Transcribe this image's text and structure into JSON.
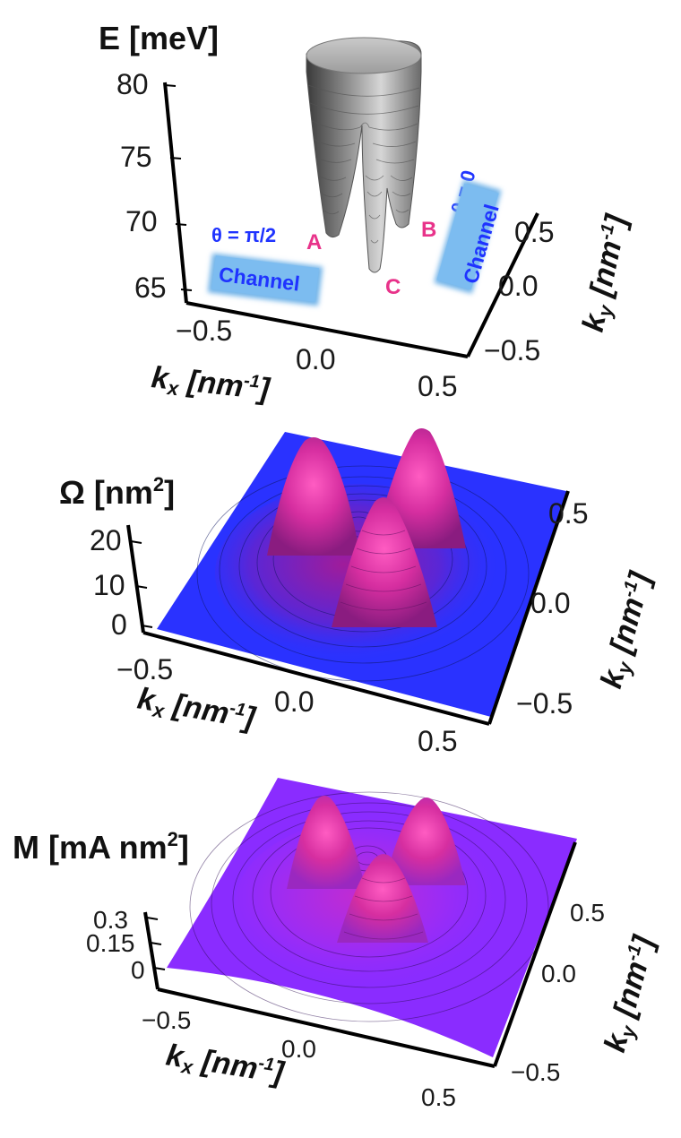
{
  "chart_data": [
    {
      "type": "surface",
      "title": "E [meV]",
      "xlabel_main": "k",
      "xlabel_sub": "x",
      "xlabel_unit": " [nm",
      "xlabel_exp": "-1",
      "xlabel_close": "]",
      "ylabel_main": "k",
      "ylabel_sub": "y",
      "ylabel_unit": " [nm",
      "ylabel_exp": "-1",
      "ylabel_close": "]",
      "z_ticks": [
        "80",
        "75",
        "70",
        "65"
      ],
      "z_values": [
        80,
        75,
        70,
        65
      ],
      "zlim": [
        65,
        80
      ],
      "x_ticks": [
        "−0.5",
        "0.0",
        "0.5"
      ],
      "y_ticks": [
        "0.5",
        "0.0",
        "−0.5"
      ],
      "xlim": [
        -0.5,
        0.5
      ],
      "ylim": [
        -0.5,
        0.5
      ],
      "valleys": [
        {
          "label": "A"
        },
        {
          "label": "B"
        },
        {
          "label": "C"
        }
      ],
      "annotations": {
        "theta_pi2": "θ = π/2",
        "theta_0": "θ = 0",
        "channel_left": "Channel",
        "channel_right": "Channel"
      },
      "colors": {
        "surface": "#9a9a9a",
        "annotation_letters": "#e8338a",
        "annotation_theta": "#1f33ff",
        "channel_box": "#6fb2e8"
      }
    },
    {
      "type": "surface",
      "title_main": "Ω [nm",
      "title_exp": "2",
      "title_close": "]",
      "z_ticks": [
        "20",
        "10",
        "0"
      ],
      "z_values": [
        20,
        10,
        0
      ],
      "zlim": [
        0,
        25
      ],
      "x_ticks": [
        "−0.5",
        "0.0",
        "0.5"
      ],
      "y_ticks": [
        "0.5",
        "0.0",
        "−0.5"
      ],
      "xlim": [
        -0.5,
        0.5
      ],
      "ylim": [
        -0.5,
        0.5
      ],
      "xlabel_main": "k",
      "xlabel_sub": "x",
      "xlabel_unit": " [nm",
      "xlabel_exp": "-1",
      "xlabel_close": "]",
      "ylabel_main": "k",
      "ylabel_sub": "y",
      "ylabel_unit": " [nm",
      "ylabel_exp": "-1",
      "ylabel_close": "]",
      "colors": {
        "base": "#2a32ff",
        "peak": "#f03c9b"
      }
    },
    {
      "type": "surface",
      "title_main": "M [mA nm",
      "title_exp": "2",
      "title_close": "]",
      "z_ticks": [
        "0.3",
        "0.15",
        "0"
      ],
      "z_values": [
        0.3,
        0.15,
        0
      ],
      "zlim": [
        0,
        0.3
      ],
      "x_ticks": [
        "−0.5",
        "0.0",
        "0.5"
      ],
      "y_ticks": [
        "0.5",
        "0.0",
        "−0.5"
      ],
      "xlim": [
        -0.5,
        0.5
      ],
      "ylim": [
        -0.5,
        0.5
      ],
      "xlabel_main": "k",
      "xlabel_sub": "x",
      "xlabel_unit": " [nm",
      "xlabel_exp": "-1",
      "xlabel_close": "]",
      "ylabel_main": "k",
      "ylabel_sub": "y",
      "ylabel_unit": " [nm",
      "ylabel_exp": "-1",
      "ylabel_close": "]",
      "colors": {
        "base": "#8a2cff",
        "peak": "#f03c9b"
      }
    }
  ]
}
